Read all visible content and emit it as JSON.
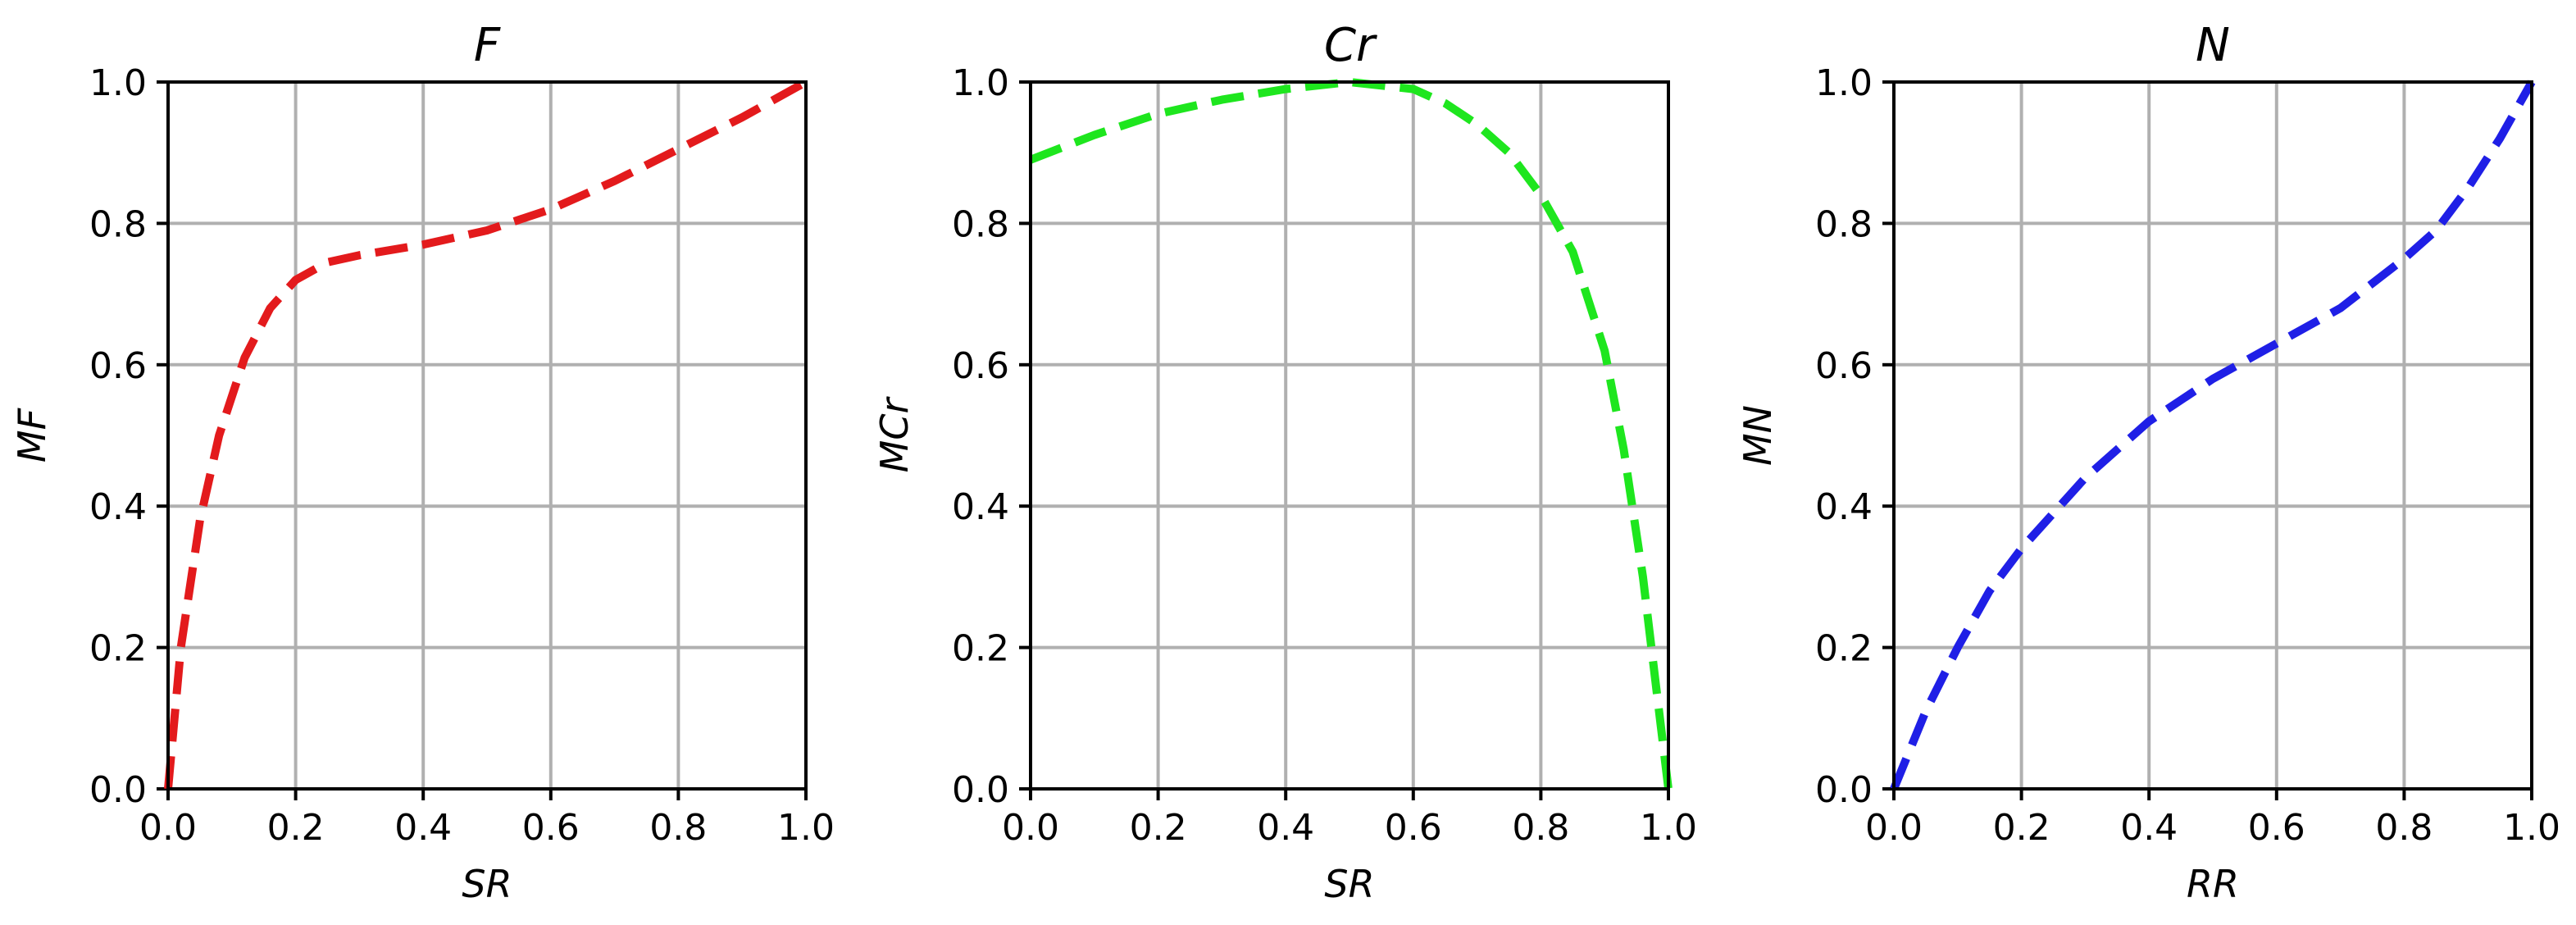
{
  "colors": {
    "red": "#e31a1c",
    "green": "#1ee61e",
    "blue": "#1f1fe6"
  },
  "chart_data": [
    {
      "type": "line",
      "title": "F",
      "xlabel": "SR",
      "ylabel": "MF",
      "xlim": [
        0.0,
        1.0
      ],
      "ylim": [
        0.0,
        1.0
      ],
      "grid": true,
      "xticks": [
        "0.0",
        "0.2",
        "0.4",
        "0.6",
        "0.8",
        "1.0"
      ],
      "yticks": [
        "0.0",
        "0.2",
        "0.4",
        "0.6",
        "0.8",
        "1.0"
      ],
      "series": [
        {
          "color": "#e31a1c",
          "style": "dashed",
          "x": [
            0.0,
            0.02,
            0.05,
            0.08,
            0.12,
            0.16,
            0.2,
            0.25,
            0.3,
            0.4,
            0.5,
            0.6,
            0.7,
            0.8,
            0.9,
            1.0
          ],
          "y": [
            0.0,
            0.2,
            0.38,
            0.5,
            0.61,
            0.68,
            0.72,
            0.745,
            0.755,
            0.77,
            0.79,
            0.82,
            0.86,
            0.905,
            0.95,
            1.0
          ]
        }
      ]
    },
    {
      "type": "line",
      "title": "Cr",
      "xlabel": "SR",
      "ylabel": "MCr",
      "xlim": [
        0.0,
        1.0
      ],
      "ylim": [
        0.0,
        1.0
      ],
      "grid": true,
      "xticks": [
        "0.0",
        "0.2",
        "0.4",
        "0.6",
        "0.8",
        "1.0"
      ],
      "yticks": [
        "0.0",
        "0.2",
        "0.4",
        "0.6",
        "0.8",
        "1.0"
      ],
      "series": [
        {
          "color": "#1ee61e",
          "style": "dashed",
          "x": [
            0.0,
            0.1,
            0.2,
            0.3,
            0.4,
            0.5,
            0.6,
            0.65,
            0.7,
            0.75,
            0.8,
            0.85,
            0.9,
            0.93,
            0.96,
            0.98,
            1.0
          ],
          "y": [
            0.89,
            0.925,
            0.955,
            0.975,
            0.99,
            1.0,
            0.99,
            0.97,
            0.94,
            0.9,
            0.84,
            0.76,
            0.62,
            0.48,
            0.3,
            0.15,
            0.0
          ]
        }
      ]
    },
    {
      "type": "line",
      "title": "N",
      "xlabel": "RR",
      "ylabel": "MN",
      "xlim": [
        0.0,
        1.0
      ],
      "ylim": [
        0.0,
        1.0
      ],
      "grid": true,
      "xticks": [
        "0.0",
        "0.2",
        "0.4",
        "0.6",
        "0.8",
        "1.0"
      ],
      "yticks": [
        "0.0",
        "0.2",
        "0.4",
        "0.6",
        "0.8",
        "1.0"
      ],
      "series": [
        {
          "color": "#1f1fe6",
          "style": "dashed",
          "x": [
            0.0,
            0.05,
            0.1,
            0.15,
            0.2,
            0.3,
            0.4,
            0.5,
            0.6,
            0.7,
            0.8,
            0.85,
            0.9,
            0.95,
            1.0
          ],
          "y": [
            0.0,
            0.11,
            0.2,
            0.28,
            0.34,
            0.44,
            0.52,
            0.58,
            0.63,
            0.68,
            0.75,
            0.79,
            0.85,
            0.92,
            1.0
          ]
        }
      ]
    }
  ]
}
